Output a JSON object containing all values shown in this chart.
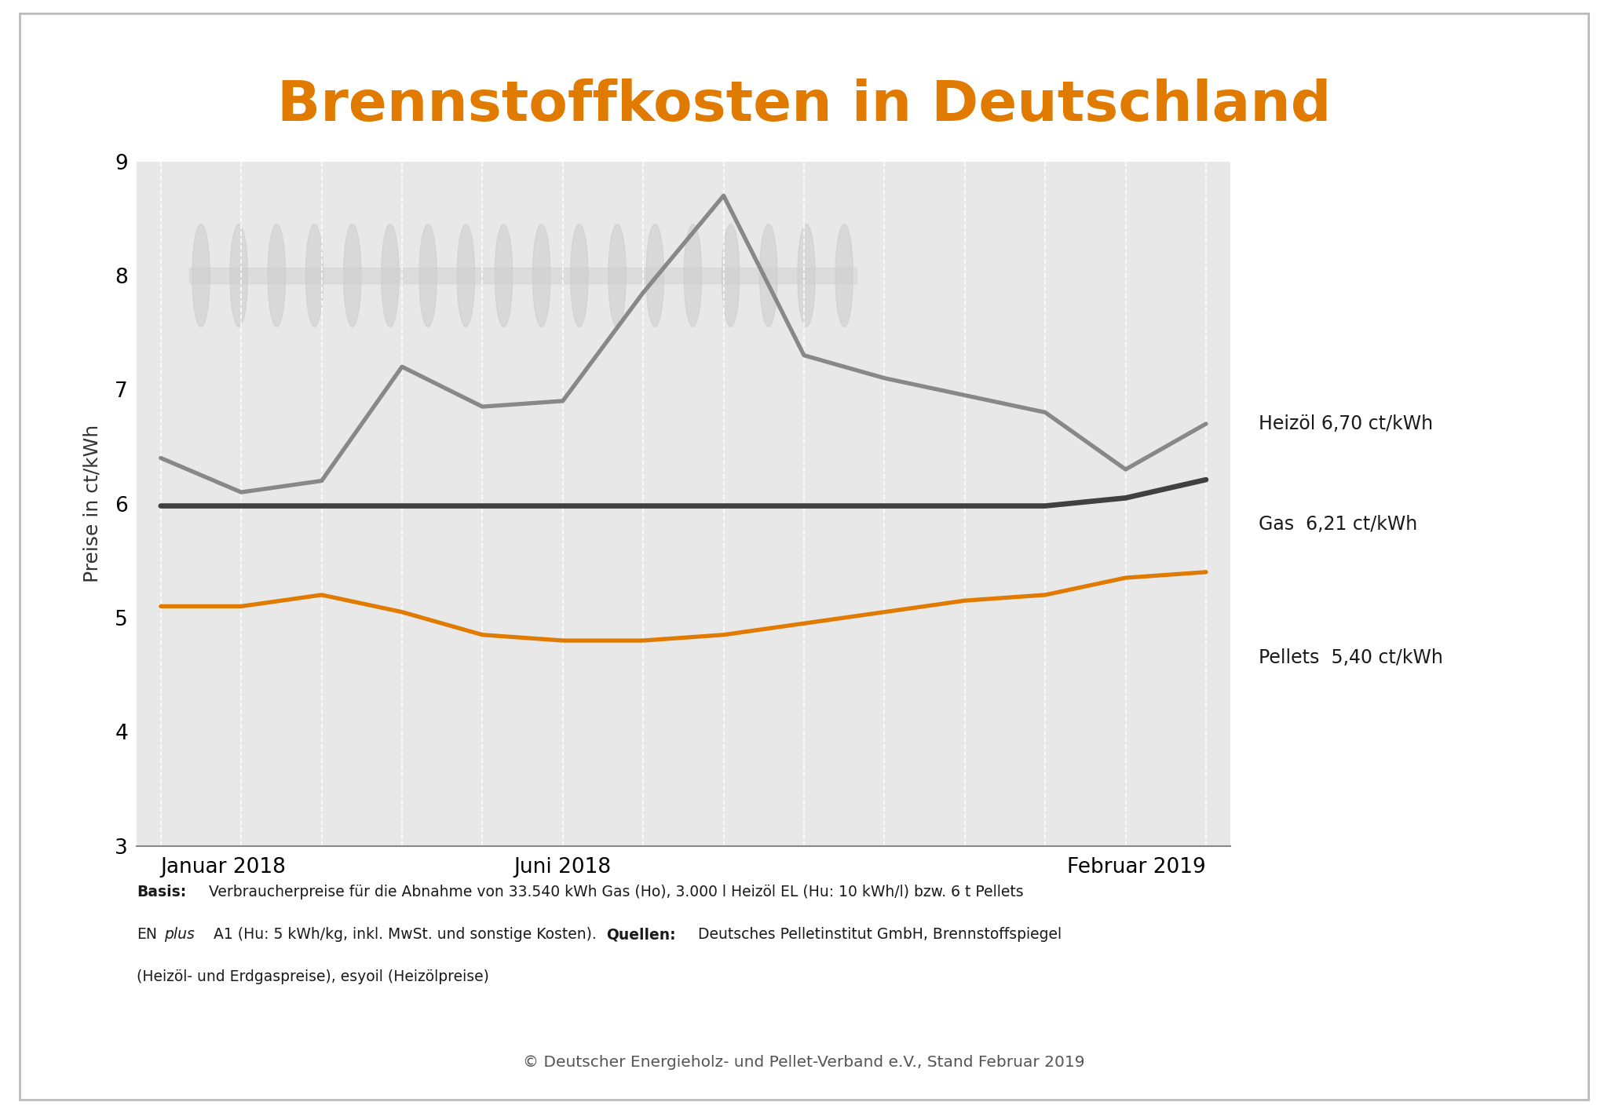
{
  "title": "Brennstoffkosten in Deutschland",
  "title_color": "#E07B00",
  "ylabel": "Preise in ct/kWh",
  "ylim": [
    3,
    9
  ],
  "yticks": [
    3,
    4,
    5,
    6,
    7,
    8,
    9
  ],
  "xlabel_labels": [
    "Januar 2018",
    "Juni 2018",
    "Februar 2019"
  ],
  "xtick_positions": [
    0,
    5,
    13
  ],
  "months": [
    0,
    1,
    2,
    3,
    4,
    5,
    6,
    7,
    8,
    9,
    10,
    11,
    12,
    13
  ],
  "heizoel": [
    6.4,
    6.1,
    6.2,
    7.2,
    6.85,
    6.9,
    7.85,
    8.7,
    7.3,
    7.1,
    6.95,
    6.8,
    6.3,
    6.7
  ],
  "gas": [
    5.98,
    5.98,
    5.98,
    5.98,
    5.98,
    5.98,
    5.98,
    5.98,
    5.98,
    5.98,
    5.98,
    5.98,
    6.05,
    6.21
  ],
  "pellets": [
    5.1,
    5.1,
    5.2,
    5.05,
    4.85,
    4.8,
    4.8,
    4.85,
    4.95,
    5.05,
    5.15,
    5.2,
    5.35,
    5.4
  ],
  "heizoel_color": "#888888",
  "gas_color": "#404040",
  "pellets_color": "#E07B00",
  "heizoel_label": "Heizöl 6,70 ct/kWh",
  "gas_label": "Gas  6,21 ct/kWh",
  "pellets_label": "Pellets  5,40 ct/kWh",
  "plot_bg_color": "#E8E8E8",
  "white_right_bg": "#FFFFFF",
  "grid_color": "#FFFFFF",
  "border_color": "#BBBBBB",
  "copyright": "© Deutscher Energieholz- und Pellet-Verband e.V., Stand Februar 2019"
}
